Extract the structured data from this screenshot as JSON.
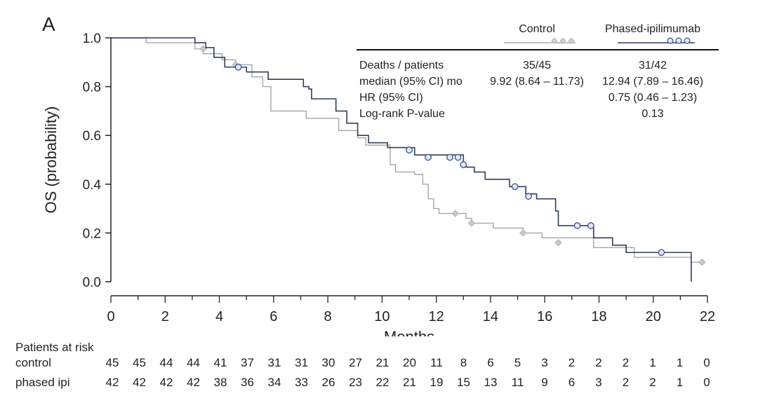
{
  "panel_label": "A",
  "chart_data": {
    "type": "line",
    "subtype": "kaplan-meier",
    "xlabel": "Months",
    "ylabel": "OS (probability)",
    "xlim": [
      0,
      22
    ],
    "ylim": [
      0,
      1.0
    ],
    "xticks": [
      "0",
      "2",
      "4",
      "6",
      "8",
      "10",
      "12",
      "14",
      "16",
      "18",
      "20",
      "22"
    ],
    "yticks": [
      "0.0",
      "0.2",
      "0.4",
      "0.6",
      "0.8",
      "1.0"
    ],
    "grid": false,
    "colors": {
      "control": "#a7a7a7",
      "phased": "#2f3e58",
      "censor_phased": "#3d5b99"
    },
    "series": [
      {
        "name": "Control",
        "steps": [
          [
            0,
            1.0
          ],
          [
            1.3,
            0.98
          ],
          [
            3.1,
            0.955
          ],
          [
            3.4,
            0.935
          ],
          [
            4.1,
            0.91
          ],
          [
            4.6,
            0.89
          ],
          [
            5.2,
            0.84
          ],
          [
            5.6,
            0.8
          ],
          [
            5.9,
            0.7
          ],
          [
            7.2,
            0.67
          ],
          [
            8.4,
            0.62
          ],
          [
            9.1,
            0.59
          ],
          [
            9.4,
            0.56
          ],
          [
            10.3,
            0.48
          ],
          [
            10.5,
            0.45
          ],
          [
            11.2,
            0.44
          ],
          [
            11.5,
            0.4
          ],
          [
            11.7,
            0.34
          ],
          [
            11.9,
            0.3
          ],
          [
            12.1,
            0.28
          ],
          [
            13.1,
            0.26
          ],
          [
            13.3,
            0.24
          ],
          [
            14.1,
            0.22
          ],
          [
            15.2,
            0.2
          ],
          [
            15.9,
            0.18
          ],
          [
            17.8,
            0.14
          ],
          [
            19.3,
            0.1
          ],
          [
            21.4,
            0.08
          ]
        ],
        "end": 21.8,
        "censored": [
          [
            3.4,
            0.955
          ],
          [
            4.6,
            0.89
          ],
          [
            12.7,
            0.28
          ],
          [
            13.3,
            0.24
          ],
          [
            15.2,
            0.2
          ],
          [
            16.5,
            0.16
          ],
          [
            21.8,
            0.08
          ]
        ]
      },
      {
        "name": "Phased-ipilimumab",
        "steps": [
          [
            0,
            1.0
          ],
          [
            3.1,
            0.98
          ],
          [
            3.5,
            0.96
          ],
          [
            3.8,
            0.92
          ],
          [
            4.2,
            0.88
          ],
          [
            5.0,
            0.86
          ],
          [
            5.8,
            0.83
          ],
          [
            7.1,
            0.8
          ],
          [
            7.3,
            0.79
          ],
          [
            7.4,
            0.75
          ],
          [
            8.3,
            0.7
          ],
          [
            8.7,
            0.65
          ],
          [
            9.1,
            0.6
          ],
          [
            9.5,
            0.57
          ],
          [
            10.2,
            0.55
          ],
          [
            11.2,
            0.52
          ],
          [
            13.0,
            0.47
          ],
          [
            13.4,
            0.45
          ],
          [
            13.8,
            0.42
          ],
          [
            14.7,
            0.39
          ],
          [
            15.3,
            0.36
          ],
          [
            15.7,
            0.34
          ],
          [
            16.4,
            0.29
          ],
          [
            16.5,
            0.23
          ],
          [
            17.8,
            0.18
          ],
          [
            18.5,
            0.15
          ],
          [
            19.0,
            0.12
          ],
          [
            21.4,
            0.0
          ]
        ],
        "end": 21.4,
        "censored": [
          [
            4.7,
            0.88
          ],
          [
            11.0,
            0.54
          ],
          [
            11.7,
            0.51
          ],
          [
            12.5,
            0.51
          ],
          [
            12.8,
            0.51
          ],
          [
            13.0,
            0.48
          ],
          [
            14.9,
            0.39
          ],
          [
            15.4,
            0.35
          ],
          [
            17.2,
            0.23
          ],
          [
            17.7,
            0.23
          ],
          [
            20.3,
            0.12
          ]
        ]
      }
    ],
    "legend": {
      "position": "top-right",
      "headers": [
        "Control",
        "Phased-ipilimumab"
      ],
      "rows": [
        {
          "label": "Deaths / patients",
          "control": "35/45",
          "phased": "31/42"
        },
        {
          "label": "median (95% CI) mo",
          "control": "9.92 (8.64 – 11.73)",
          "phased": "12.94 (7.89 – 16.46)"
        },
        {
          "label": "HR (95% CI)",
          "control": "",
          "phased": "0.75 (0.46 – 1.23)"
        },
        {
          "label": "Log-rank P-value",
          "control": "",
          "phased": "0.13"
        }
      ]
    },
    "risk_table": {
      "title": "Patients at risk",
      "rows": [
        {
          "label": "control",
          "values": [
            "45",
            "45",
            "44",
            "44",
            "41",
            "37",
            "31",
            "31",
            "30",
            "27",
            "21",
            "20",
            "11",
            "8",
            "6",
            "5",
            "3",
            "2",
            "2",
            "2",
            "1",
            "1",
            "0"
          ]
        },
        {
          "label": "phased ipi",
          "values": [
            "42",
            "42",
            "42",
            "42",
            "38",
            "36",
            "34",
            "33",
            "26",
            "23",
            "22",
            "21",
            "19",
            "15",
            "13",
            "11",
            "9",
            "6",
            "3",
            "2",
            "2",
            "1",
            "0"
          ]
        }
      ]
    }
  }
}
